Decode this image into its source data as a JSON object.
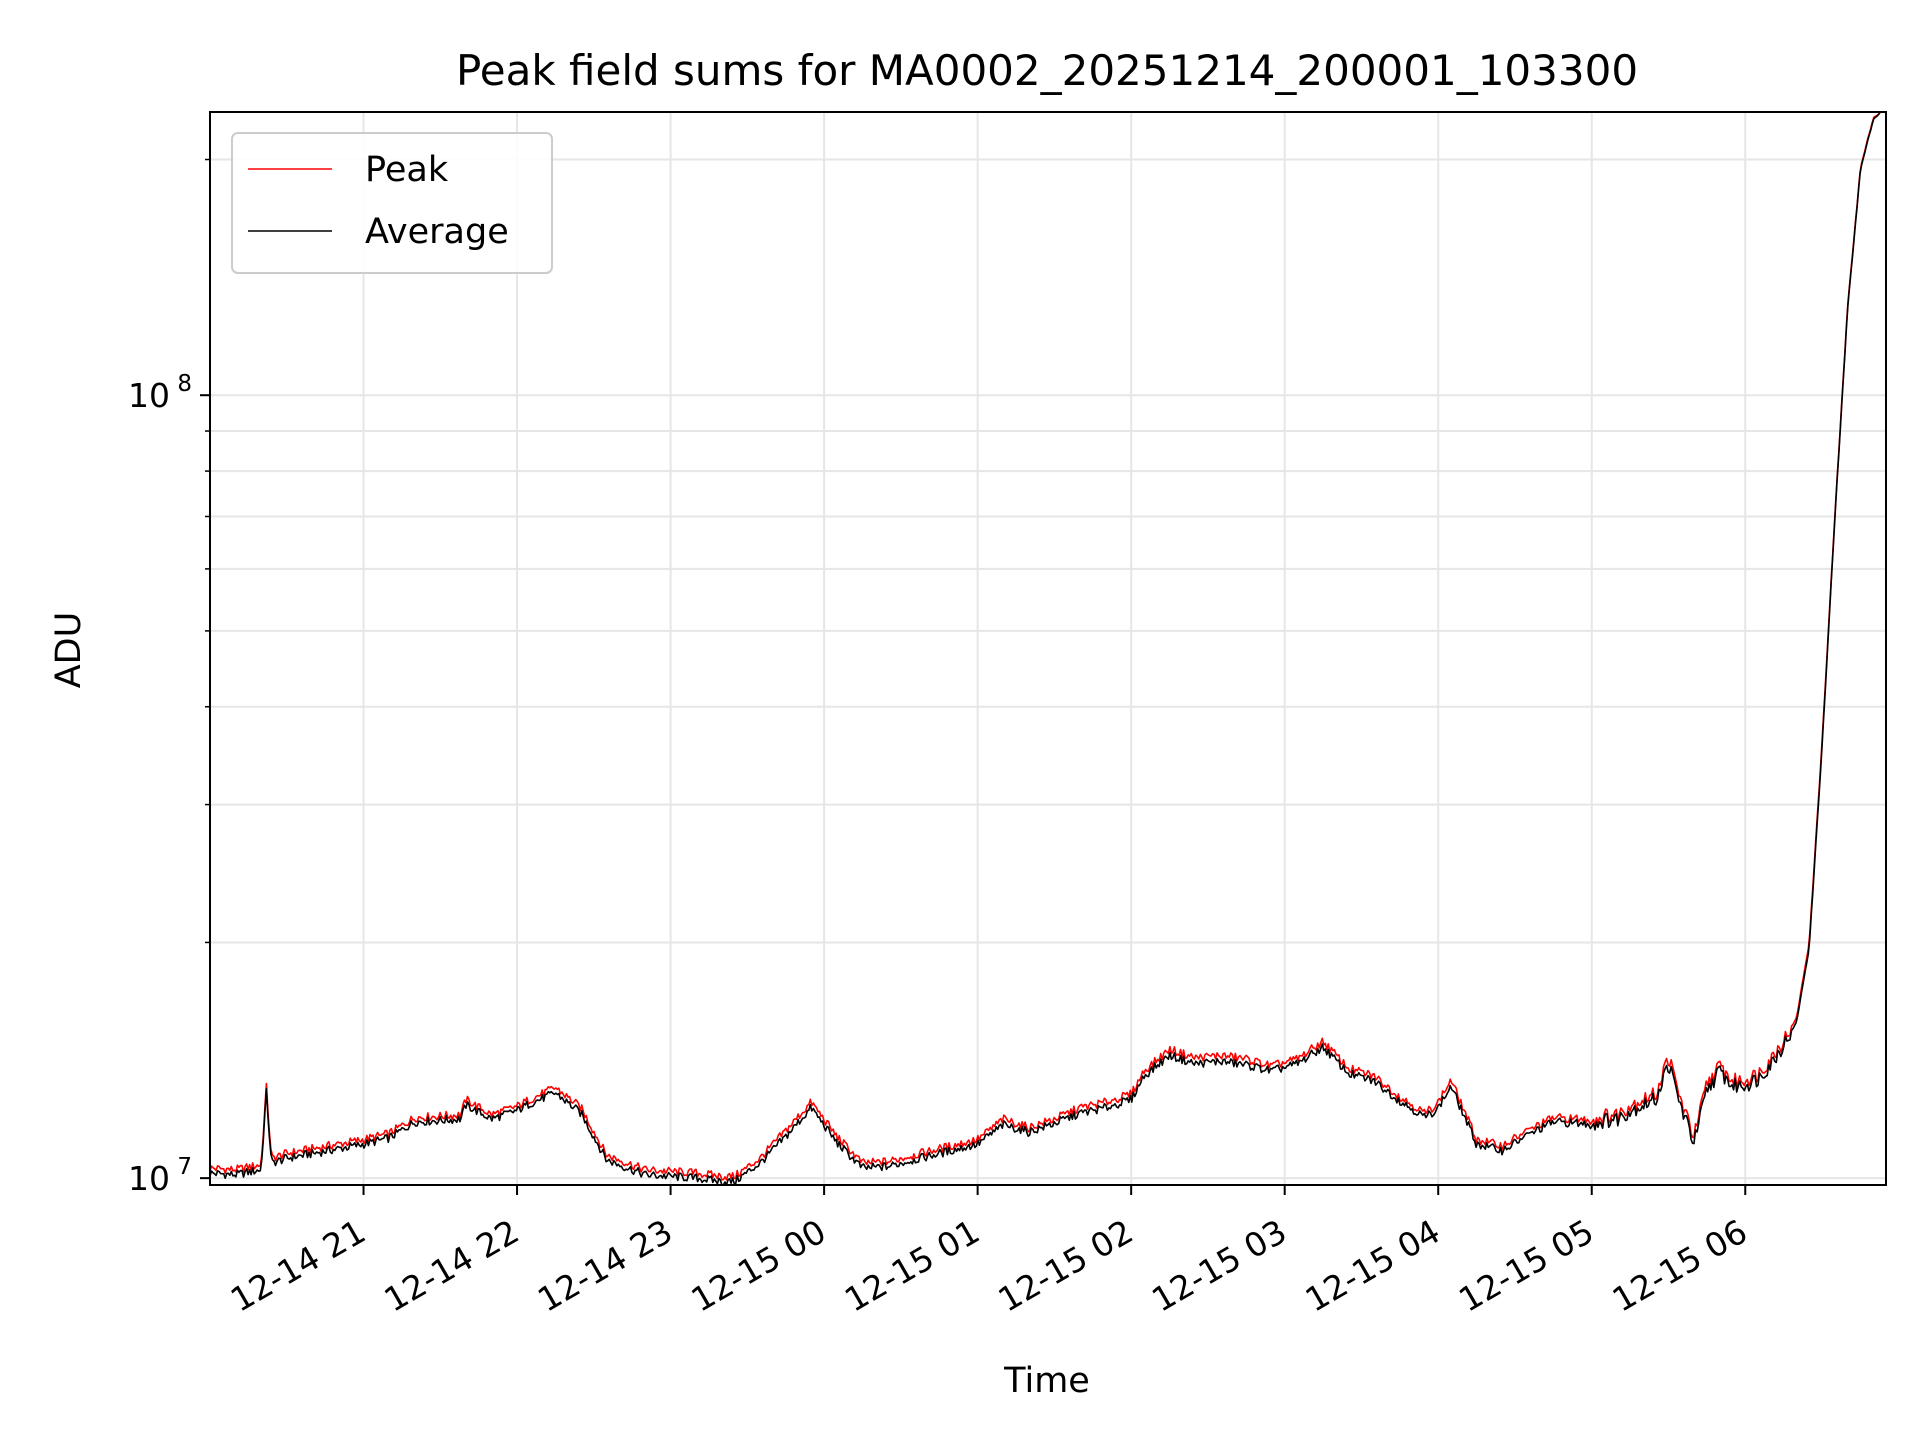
{
  "chart_data": {
    "type": "line",
    "title": "Peak field sums for MA0002_20251214_200001_103300",
    "xlabel": "Time",
    "ylabel": "ADU",
    "yscale": "log",
    "grid": true,
    "legend_position": "top-left",
    "xlim": [
      "2025-12-14 20:00",
      "2025-12-15 06:55"
    ],
    "ylim": [
      9800000,
      230000000
    ],
    "x_ticks": [
      {
        "value": "2025-12-14 21:00",
        "label": "12-14 21"
      },
      {
        "value": "2025-12-14 22:00",
        "label": "12-14 22"
      },
      {
        "value": "2025-12-14 23:00",
        "label": "12-14 23"
      },
      {
        "value": "2025-12-15 00:00",
        "label": "12-15 00"
      },
      {
        "value": "2025-12-15 01:00",
        "label": "12-15 01"
      },
      {
        "value": "2025-12-15 02:00",
        "label": "12-15 02"
      },
      {
        "value": "2025-12-15 03:00",
        "label": "12-15 03"
      },
      {
        "value": "2025-12-15 04:00",
        "label": "12-15 04"
      },
      {
        "value": "2025-12-15 05:00",
        "label": "12-15 05"
      },
      {
        "value": "2025-12-15 06:00",
        "label": "12-15 06"
      }
    ],
    "y_major_ticks": [
      {
        "value": 10000000,
        "base": "10",
        "exp": "7"
      },
      {
        "value": 100000000,
        "base": "10",
        "exp": "8"
      }
    ],
    "y_minor_ticks": [
      20000000,
      30000000,
      40000000,
      50000000,
      60000000,
      70000000,
      80000000,
      90000000,
      200000000
    ],
    "x": [
      "2025-12-14 20:00",
      "2025-12-14 20:10",
      "2025-12-14 20:20",
      "2025-12-14 20:22",
      "2025-12-14 20:24",
      "2025-12-14 20:30",
      "2025-12-14 20:40",
      "2025-12-14 20:50",
      "2025-12-14 21:00",
      "2025-12-14 21:10",
      "2025-12-14 21:20",
      "2025-12-14 21:30",
      "2025-12-14 21:38",
      "2025-12-14 21:40",
      "2025-12-14 21:50",
      "2025-12-14 22:00",
      "2025-12-14 22:05",
      "2025-12-14 22:15",
      "2025-12-14 22:25",
      "2025-12-14 22:35",
      "2025-12-14 22:50",
      "2025-12-14 23:00",
      "2025-12-14 23:10",
      "2025-12-14 23:20",
      "2025-12-14 23:25",
      "2025-12-14 23:35",
      "2025-12-14 23:45",
      "2025-12-14 23:55",
      "2025-12-15 00:05",
      "2025-12-15 00:15",
      "2025-12-15 00:25",
      "2025-12-15 00:35",
      "2025-12-15 00:45",
      "2025-12-15 00:55",
      "2025-12-15 01:00",
      "2025-12-15 01:10",
      "2025-12-15 01:20",
      "2025-12-15 01:30",
      "2025-12-15 01:40",
      "2025-12-15 01:50",
      "2025-12-15 02:00",
      "2025-12-15 02:05",
      "2025-12-15 02:15",
      "2025-12-15 02:25",
      "2025-12-15 02:35",
      "2025-12-15 02:45",
      "2025-12-15 02:55",
      "2025-12-15 03:05",
      "2025-12-15 03:15",
      "2025-12-15 03:25",
      "2025-12-15 03:35",
      "2025-12-15 03:45",
      "2025-12-15 03:55",
      "2025-12-15 04:00",
      "2025-12-15 04:05",
      "2025-12-15 04:15",
      "2025-12-15 04:25",
      "2025-12-15 04:35",
      "2025-12-15 04:45",
      "2025-12-15 04:55",
      "2025-12-15 05:00",
      "2025-12-15 05:05",
      "2025-12-15 05:10",
      "2025-12-15 05:15",
      "2025-12-15 05:20",
      "2025-12-15 05:25",
      "2025-12-15 05:30",
      "2025-12-15 05:35",
      "2025-12-15 05:40",
      "2025-12-15 05:45",
      "2025-12-15 05:50",
      "2025-12-15 05:55",
      "2025-12-15 06:00",
      "2025-12-15 06:05",
      "2025-12-15 06:10",
      "2025-12-15 06:15",
      "2025-12-15 06:20",
      "2025-12-15 06:25",
      "2025-12-15 06:30",
      "2025-12-15 06:35",
      "2025-12-15 06:40",
      "2025-12-15 06:45",
      "2025-12-15 06:50",
      "2025-12-15 06:53"
    ],
    "series": [
      {
        "name": "Peak",
        "color": "#ff0000",
        "values": [
          10300000,
          10250000,
          10400000,
          13100000,
          10600000,
          10750000,
          10900000,
          11050000,
          11200000,
          11400000,
          11950000,
          12000000,
          12050000,
          12600000,
          12050000,
          12350000,
          12600000,
          13050000,
          12300000,
          10700000,
          10250000,
          10200000,
          10150000,
          10050000,
          10050000,
          10600000,
          11500000,
          12500000,
          11300000,
          10450000,
          10500000,
          10700000,
          10900000,
          11100000,
          11200000,
          11900000,
          11600000,
          11900000,
          12300000,
          12500000,
          12800000,
          13700000,
          14600000,
          14250000,
          14350000,
          14200000,
          13900000,
          14200000,
          14950000,
          13800000,
          13500000,
          12700000,
          12100000,
          12500000,
          13350000,
          11200000,
          11000000,
          11500000,
          11950000,
          11900000,
          11850000,
          12000000,
          12050000,
          12400000,
          12600000,
          12800000,
          14300000,
          12500000,
          11300000,
          13200000,
          13900000,
          13300000,
          13350000,
          13600000,
          14200000,
          15000000,
          16000000,
          20000000,
          36000000,
          70000000,
          130000000,
          195000000,
          226000000,
          230000000
        ]
      },
      {
        "name": "Average",
        "color": "#000000",
        "values": [
          10150000,
          10100000,
          10250000,
          12900000,
          10450000,
          10600000,
          10750000,
          10900000,
          11050000,
          11250000,
          11800000,
          11850000,
          11900000,
          12400000,
          11900000,
          12200000,
          12450000,
          12850000,
          12100000,
          10550000,
          10100000,
          10050000,
          10000000,
          9900000,
          9900000,
          10450000,
          11300000,
          12300000,
          11100000,
          10300000,
          10350000,
          10550000,
          10750000,
          10950000,
          11050000,
          11700000,
          11450000,
          11750000,
          12100000,
          12300000,
          12600000,
          13500000,
          14350000,
          14000000,
          14100000,
          13950000,
          13700000,
          14000000,
          14700000,
          13600000,
          13300000,
          12550000,
          11950000,
          12300000,
          13100000,
          11050000,
          10850000,
          11350000,
          11800000,
          11750000,
          11700000,
          11850000,
          11900000,
          12200000,
          12400000,
          12600000,
          14000000,
          12300000,
          11100000,
          12950000,
          13700000,
          13100000,
          13150000,
          13400000,
          14000000,
          14800000,
          15800000,
          19700000,
          35500000,
          69500000,
          129000000,
          194000000,
          225000000,
          230000000
        ]
      }
    ]
  }
}
